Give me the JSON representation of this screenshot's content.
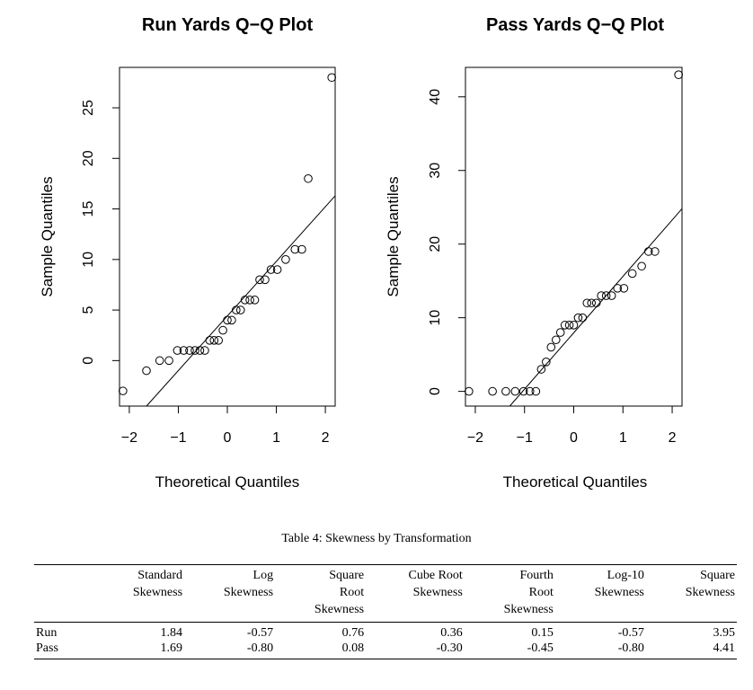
{
  "chart_data": [
    {
      "type": "scatter",
      "title": "Run Yards Q−Q Plot",
      "xlabel": "Theoretical Quantiles",
      "ylabel": "Sample Quantiles",
      "xlim": [
        -2.2,
        2.2
      ],
      "ylim": [
        -4.5,
        29.0
      ],
      "xticks": [
        -2,
        -1,
        0,
        1,
        2
      ],
      "xtick_labels": [
        "−2",
        "−1",
        "0",
        "1",
        "2"
      ],
      "yticks": [
        0,
        5,
        10,
        15,
        20,
        25
      ],
      "ytick_labels": [
        "0",
        "5",
        "10",
        "15",
        "20",
        "25"
      ],
      "reference_line": {
        "x1": -1.65,
        "y1": -4.5,
        "x2": 2.2,
        "y2": 16.3
      },
      "points": [
        {
          "x": -2.13,
          "y": -3
        },
        {
          "x": -1.65,
          "y": -1
        },
        {
          "x": -1.38,
          "y": 0
        },
        {
          "x": -1.19,
          "y": 0
        },
        {
          "x": -1.02,
          "y": 1
        },
        {
          "x": -0.89,
          "y": 1
        },
        {
          "x": -0.77,
          "y": 1
        },
        {
          "x": -0.66,
          "y": 1
        },
        {
          "x": -0.56,
          "y": 1
        },
        {
          "x": -0.46,
          "y": 1
        },
        {
          "x": -0.36,
          "y": 2
        },
        {
          "x": -0.27,
          "y": 2
        },
        {
          "x": -0.18,
          "y": 2
        },
        {
          "x": -0.09,
          "y": 3
        },
        {
          "x": 0.0,
          "y": 4
        },
        {
          "x": 0.09,
          "y": 4
        },
        {
          "x": 0.18,
          "y": 5
        },
        {
          "x": 0.27,
          "y": 5
        },
        {
          "x": 0.36,
          "y": 6
        },
        {
          "x": 0.46,
          "y": 6
        },
        {
          "x": 0.56,
          "y": 6
        },
        {
          "x": 0.66,
          "y": 8
        },
        {
          "x": 0.77,
          "y": 8
        },
        {
          "x": 0.89,
          "y": 9
        },
        {
          "x": 1.02,
          "y": 9
        },
        {
          "x": 1.19,
          "y": 10
        },
        {
          "x": 1.38,
          "y": 11
        },
        {
          "x": 1.52,
          "y": 11
        },
        {
          "x": 1.65,
          "y": 18
        },
        {
          "x": 2.13,
          "y": 28
        }
      ]
    },
    {
      "type": "scatter",
      "title": "Pass Yards Q−Q Plot",
      "xlabel": "Theoretical Quantiles",
      "ylabel": "Sample Quantiles",
      "xlim": [
        -2.2,
        2.2
      ],
      "ylim": [
        -2.0,
        44.0
      ],
      "xticks": [
        -2,
        -1,
        0,
        1,
        2
      ],
      "xtick_labels": [
        "−2",
        "−1",
        "0",
        "1",
        "2"
      ],
      "yticks": [
        0,
        10,
        20,
        30,
        40
      ],
      "ytick_labels": [
        "0",
        "10",
        "20",
        "30",
        "40"
      ],
      "reference_line": {
        "x1": -1.3,
        "y1": -2.0,
        "x2": 2.2,
        "y2": 24.8
      },
      "points": [
        {
          "x": -2.13,
          "y": 0
        },
        {
          "x": -1.65,
          "y": 0
        },
        {
          "x": -1.38,
          "y": 0
        },
        {
          "x": -1.19,
          "y": 0
        },
        {
          "x": -1.02,
          "y": 0
        },
        {
          "x": -0.89,
          "y": 0
        },
        {
          "x": -0.77,
          "y": 0
        },
        {
          "x": -0.66,
          "y": 3
        },
        {
          "x": -0.56,
          "y": 4
        },
        {
          "x": -0.46,
          "y": 6
        },
        {
          "x": -0.36,
          "y": 7
        },
        {
          "x": -0.27,
          "y": 8
        },
        {
          "x": -0.18,
          "y": 9
        },
        {
          "x": -0.09,
          "y": 9
        },
        {
          "x": 0.0,
          "y": 9
        },
        {
          "x": 0.09,
          "y": 10
        },
        {
          "x": 0.18,
          "y": 10
        },
        {
          "x": 0.27,
          "y": 12
        },
        {
          "x": 0.36,
          "y": 12
        },
        {
          "x": 0.46,
          "y": 12
        },
        {
          "x": 0.56,
          "y": 13
        },
        {
          "x": 0.66,
          "y": 13
        },
        {
          "x": 0.77,
          "y": 13
        },
        {
          "x": 0.89,
          "y": 14
        },
        {
          "x": 1.02,
          "y": 14
        },
        {
          "x": 1.19,
          "y": 16
        },
        {
          "x": 1.38,
          "y": 17
        },
        {
          "x": 1.52,
          "y": 19
        },
        {
          "x": 1.65,
          "y": 19
        },
        {
          "x": 2.13,
          "y": 43
        }
      ]
    }
  ],
  "table": {
    "caption": "Table 4: Skewness by Transformation",
    "columns": [
      [
        "Standard",
        "Skewness"
      ],
      [
        "Log",
        "Skewness"
      ],
      [
        "Square",
        "Root",
        "Skewness"
      ],
      [
        "Cube Root",
        "Skewness"
      ],
      [
        "Fourth",
        "Root",
        "Skewness"
      ],
      [
        "Log-10",
        "Skewness"
      ],
      [
        "Square",
        "Skewness"
      ]
    ],
    "rows": [
      {
        "label": "Run",
        "values": [
          "1.84",
          "-0.57",
          "0.76",
          "0.36",
          "0.15",
          "-0.57",
          "3.95"
        ]
      },
      {
        "label": "Pass",
        "values": [
          "1.69",
          "-0.80",
          "0.08",
          "-0.30",
          "-0.45",
          "-0.80",
          "4.41"
        ]
      }
    ]
  }
}
